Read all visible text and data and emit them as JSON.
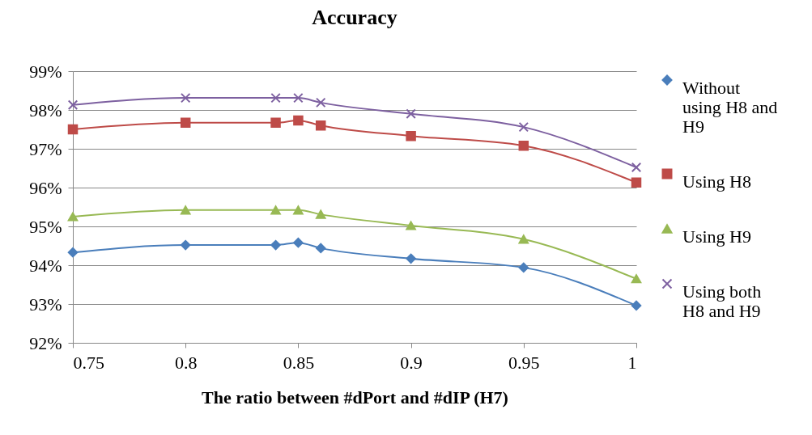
{
  "chart_data": {
    "type": "line",
    "title": "Accuracy",
    "xlabel": "The ratio between #dPort and #dIP (H7)",
    "x": [
      0.75,
      0.8,
      0.84,
      0.85,
      0.86,
      0.9,
      0.95,
      1
    ],
    "series": [
      {
        "name": "Without using H8 and H9",
        "color": "#4a7ebb",
        "marker": "diamond",
        "values": [
          94.33,
          94.52,
          94.52,
          94.58,
          94.44,
          94.17,
          93.94,
          92.96
        ]
      },
      {
        "name": "Using H8",
        "color": "#be4b48",
        "marker": "square",
        "values": [
          97.5,
          97.67,
          97.67,
          97.73,
          97.6,
          97.33,
          97.08,
          96.13
        ]
      },
      {
        "name": "Using H9",
        "color": "#98b954",
        "marker": "triangle",
        "values": [
          95.25,
          95.42,
          95.42,
          95.42,
          95.31,
          95.02,
          94.67,
          93.65
        ]
      },
      {
        "name": "Using both H8 and H9",
        "color": "#7d60a0",
        "marker": "cross",
        "values": [
          98.13,
          98.31,
          98.31,
          98.31,
          98.19,
          97.9,
          97.56,
          96.52
        ]
      }
    ],
    "xlim": [
      0.75,
      1
    ],
    "xticks": [
      0.75,
      0.8,
      0.85,
      0.9,
      0.95,
      1
    ],
    "ylim": [
      92,
      99
    ],
    "yticks": [
      {
        "value": 92,
        "label": "92%"
      },
      {
        "value": 93,
        "label": "93%"
      },
      {
        "value": 94,
        "label": "94%"
      },
      {
        "value": 95,
        "label": "95%"
      },
      {
        "value": 96,
        "label": "96%"
      },
      {
        "value": 97,
        "label": "97%"
      },
      {
        "value": 98,
        "label": "98%"
      },
      {
        "value": 99,
        "label": "99%"
      }
    ],
    "grid": "y",
    "legend": "right",
    "line_style": "solid"
  }
}
